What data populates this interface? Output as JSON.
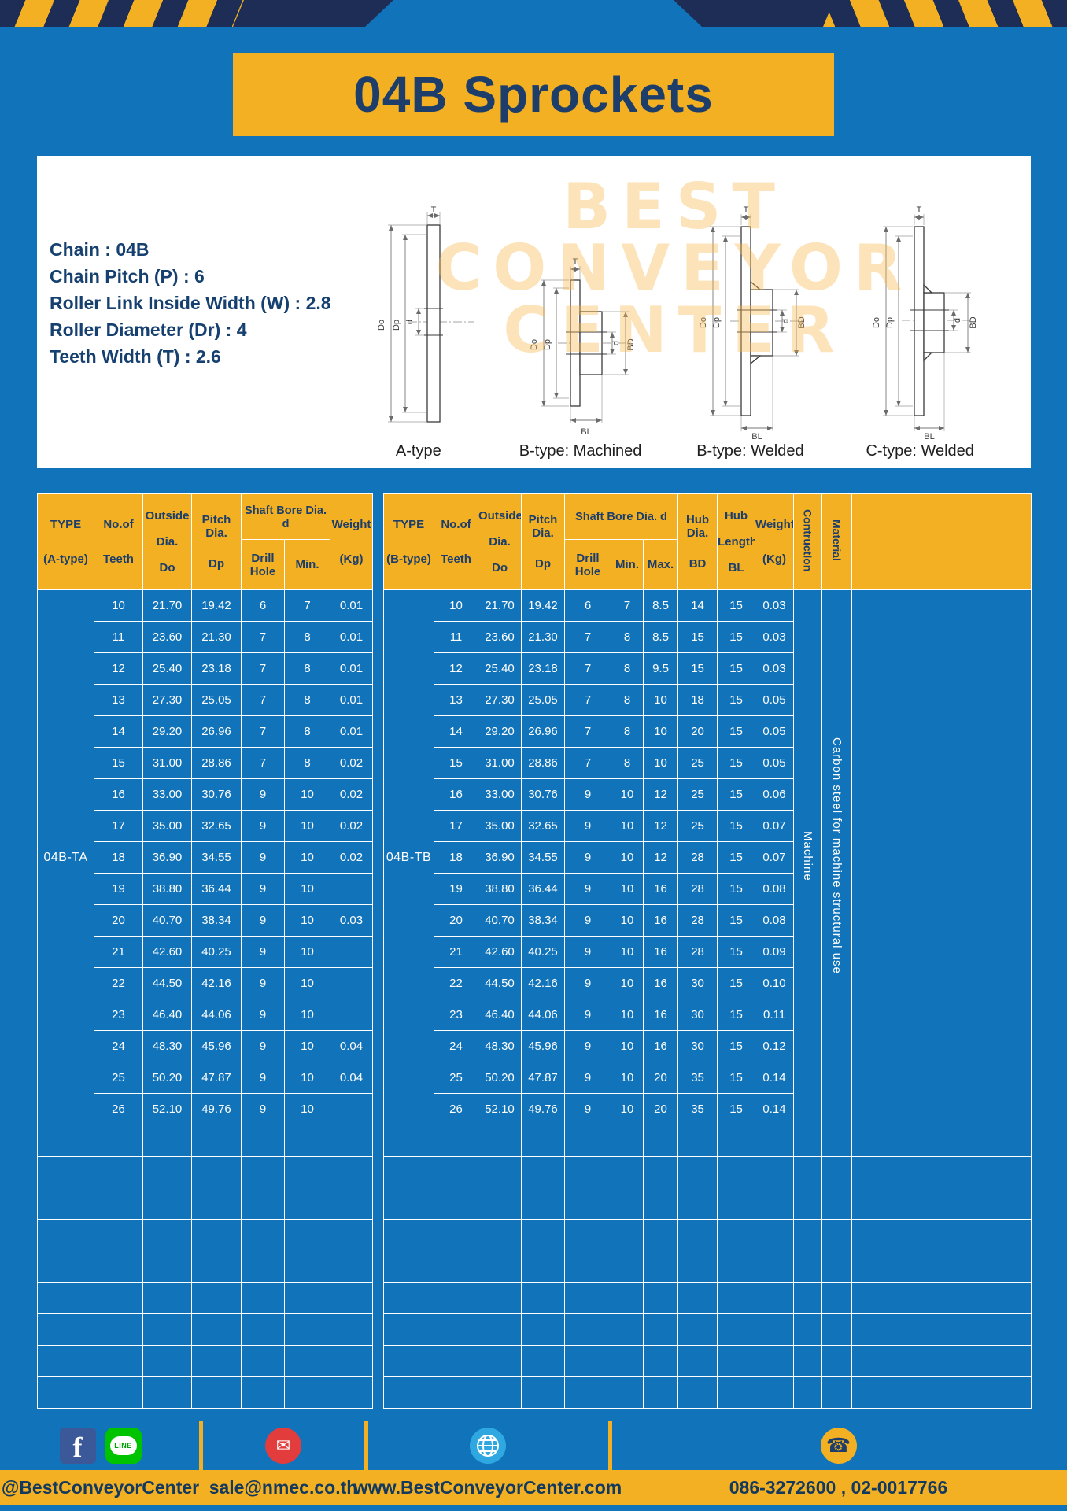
{
  "page": {
    "title": "04B Sprockets"
  },
  "specs": [
    "Chain : 04B",
    "Chain Pitch (P) : 6",
    "Roller Link Inside Width (W) : 2.8",
    "Roller Diameter (Dr) : 4",
    "Teeth Width (T) : 2.6"
  ],
  "drawings": {
    "captions": [
      "A-type",
      "B-type: Machined",
      "B-type: Welded",
      "C-type: Welded"
    ],
    "dims": {
      "T": "T",
      "Do": "Do",
      "Dp": "Dp",
      "d": "d",
      "BD": "BD",
      "BL": "BL"
    },
    "watermark": [
      "BEST",
      "CONVEYOR",
      "CENTER"
    ]
  },
  "table_a": {
    "header": {
      "type": [
        "TYPE",
        "(A-type)"
      ],
      "teeth": [
        "No.of",
        "Teeth"
      ],
      "outside": [
        "Outside",
        "Dia.",
        "Do"
      ],
      "pitch": [
        "Pitch Dia.",
        "Dp"
      ],
      "shaft_group": "Shaft Bore Dia. d",
      "drill": "Drill Hole",
      "min": "Min.",
      "weight": [
        "Weight",
        "(Kg)"
      ]
    },
    "type_value": "04B-TA",
    "rows": [
      [
        "10",
        "21.70",
        "19.42",
        "6",
        "7",
        "0.01"
      ],
      [
        "11",
        "23.60",
        "21.30",
        "7",
        "8",
        "0.01"
      ],
      [
        "12",
        "25.40",
        "23.18",
        "7",
        "8",
        "0.01"
      ],
      [
        "13",
        "27.30",
        "25.05",
        "7",
        "8",
        "0.01"
      ],
      [
        "14",
        "29.20",
        "26.96",
        "7",
        "8",
        "0.01"
      ],
      [
        "15",
        "31.00",
        "28.86",
        "7",
        "8",
        "0.02"
      ],
      [
        "16",
        "33.00",
        "30.76",
        "9",
        "10",
        "0.02"
      ],
      [
        "17",
        "35.00",
        "32.65",
        "9",
        "10",
        "0.02"
      ],
      [
        "18",
        "36.90",
        "34.55",
        "9",
        "10",
        "0.02"
      ],
      [
        "19",
        "38.80",
        "36.44",
        "9",
        "10",
        ""
      ],
      [
        "20",
        "40.70",
        "38.34",
        "9",
        "10",
        "0.03"
      ],
      [
        "21",
        "42.60",
        "40.25",
        "9",
        "10",
        ""
      ],
      [
        "22",
        "44.50",
        "42.16",
        "9",
        "10",
        ""
      ],
      [
        "23",
        "46.40",
        "44.06",
        "9",
        "10",
        ""
      ],
      [
        "24",
        "48.30",
        "45.96",
        "9",
        "10",
        "0.04"
      ],
      [
        "25",
        "50.20",
        "47.87",
        "9",
        "10",
        "0.04"
      ],
      [
        "26",
        "52.10",
        "49.76",
        "9",
        "10",
        ""
      ]
    ],
    "empty_rows": 9
  },
  "table_b": {
    "header": {
      "type": [
        "TYPE",
        "(B-type)"
      ],
      "teeth": [
        "No.of",
        "Teeth"
      ],
      "outside": [
        "Outside",
        "Dia.",
        "Do"
      ],
      "pitch": [
        "Pitch Dia.",
        "Dp"
      ],
      "shaft_group": "Shaft Bore Dia. d",
      "drill": "Drill Hole",
      "min": "Min.",
      "max": "Max.",
      "hub_dia": [
        "Hub Dia.",
        "BD"
      ],
      "hub_len": [
        "Hub",
        "Length",
        "BL"
      ],
      "weight": [
        "Weight",
        "(Kg)"
      ],
      "construction": "Contruction",
      "material": "Material"
    },
    "type_value": "04B-TB",
    "construction_value": "Machine",
    "material_value": "Carbon steel for machine structural use",
    "rows": [
      [
        "10",
        "21.70",
        "19.42",
        "6",
        "7",
        "8.5",
        "14",
        "15",
        "0.03"
      ],
      [
        "11",
        "23.60",
        "21.30",
        "7",
        "8",
        "8.5",
        "15",
        "15",
        "0.03"
      ],
      [
        "12",
        "25.40",
        "23.18",
        "7",
        "8",
        "9.5",
        "15",
        "15",
        "0.03"
      ],
      [
        "13",
        "27.30",
        "25.05",
        "7",
        "8",
        "10",
        "18",
        "15",
        "0.05"
      ],
      [
        "14",
        "29.20",
        "26.96",
        "7",
        "8",
        "10",
        "20",
        "15",
        "0.05"
      ],
      [
        "15",
        "31.00",
        "28.86",
        "7",
        "8",
        "10",
        "25",
        "15",
        "0.05"
      ],
      [
        "16",
        "33.00",
        "30.76",
        "9",
        "10",
        "12",
        "25",
        "15",
        "0.06"
      ],
      [
        "17",
        "35.00",
        "32.65",
        "9",
        "10",
        "12",
        "25",
        "15",
        "0.07"
      ],
      [
        "18",
        "36.90",
        "34.55",
        "9",
        "10",
        "12",
        "28",
        "15",
        "0.07"
      ],
      [
        "19",
        "38.80",
        "36.44",
        "9",
        "10",
        "16",
        "28",
        "15",
        "0.08"
      ],
      [
        "20",
        "40.70",
        "38.34",
        "9",
        "10",
        "16",
        "28",
        "15",
        "0.08"
      ],
      [
        "21",
        "42.60",
        "40.25",
        "9",
        "10",
        "16",
        "28",
        "15",
        "0.09"
      ],
      [
        "22",
        "44.50",
        "42.16",
        "9",
        "10",
        "16",
        "30",
        "15",
        "0.10"
      ],
      [
        "23",
        "46.40",
        "44.06",
        "9",
        "10",
        "16",
        "30",
        "15",
        "0.11"
      ],
      [
        "24",
        "48.30",
        "45.96",
        "9",
        "10",
        "16",
        "30",
        "15",
        "0.12"
      ],
      [
        "25",
        "50.20",
        "47.87",
        "9",
        "10",
        "20",
        "35",
        "15",
        "0.14"
      ],
      [
        "26",
        "52.10",
        "49.76",
        "9",
        "10",
        "20",
        "35",
        "15",
        "0.14"
      ]
    ],
    "empty_rows": 9
  },
  "footer": {
    "social_handle": "@BestConveyorCenter",
    "email": "sale@nmec.co.th",
    "website": "www.BestConveyorCenter.com",
    "phone": "086-3272600 , 02-0017766",
    "facebook_letter": "f",
    "line_label": "LINE",
    "mail_glyph": "✉",
    "phone_glyph": "☎"
  },
  "colors": {
    "background_blue": "#1173b9",
    "accent_yellow": "#f2b022",
    "navy": "#1d3e6b",
    "hazard_navy": "#1d2d56"
  }
}
